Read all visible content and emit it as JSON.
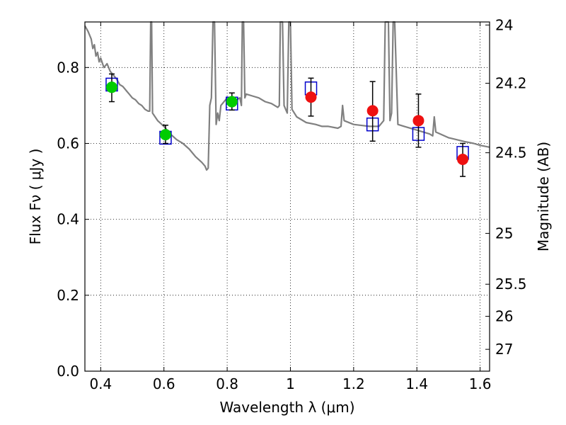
{
  "chart_data": {
    "type": "scatter",
    "xlabel": "Wavelength  λ (μm)",
    "ylabel": "Flux  Fν  ( μJy )",
    "y2label": "Magnitude (AB)",
    "xlim": [
      0.35,
      1.63
    ],
    "ylim": [
      0.0,
      0.92
    ],
    "x_ticks": [
      {
        "v": 0.4,
        "label": "0.4"
      },
      {
        "v": 0.6,
        "label": "0.6"
      },
      {
        "v": 0.8,
        "label": "0.8"
      },
      {
        "v": 1.0,
        "label": "1"
      },
      {
        "v": 1.2,
        "label": "1.2"
      },
      {
        "v": 1.4,
        "label": "1.4"
      },
      {
        "v": 1.6,
        "label": "1.6"
      }
    ],
    "y_ticks": [
      {
        "v": 0.0,
        "label": "0.0"
      },
      {
        "v": 0.2,
        "label": "0.2"
      },
      {
        "v": 0.4,
        "label": "0.4"
      },
      {
        "v": 0.6,
        "label": "0.6"
      },
      {
        "v": 0.8,
        "label": "0.8"
      }
    ],
    "y2_ticks": [
      {
        "mag": 24,
        "label": "24"
      },
      {
        "mag": 24.2,
        "label": "24.2"
      },
      {
        "mag": 24.5,
        "label": "24.5"
      },
      {
        "mag": 25,
        "label": "25"
      },
      {
        "mag": 25.5,
        "label": "25.5"
      },
      {
        "mag": 26,
        "label": "26"
      },
      {
        "mag": 27,
        "label": "27"
      }
    ],
    "grid": true,
    "colors": {
      "model": "#808080",
      "box": "#0000cc",
      "green": "#00cc00",
      "red": "#ee1111",
      "err": "#000000"
    },
    "model_spectrum": [
      [
        0.35,
        0.91
      ],
      [
        0.36,
        0.895
      ],
      [
        0.37,
        0.875
      ],
      [
        0.375,
        0.85
      ],
      [
        0.38,
        0.86
      ],
      [
        0.385,
        0.83
      ],
      [
        0.39,
        0.84
      ],
      [
        0.395,
        0.815
      ],
      [
        0.4,
        0.825
      ],
      [
        0.41,
        0.8
      ],
      [
        0.42,
        0.81
      ],
      [
        0.43,
        0.79
      ],
      [
        0.44,
        0.78
      ],
      [
        0.45,
        0.77
      ],
      [
        0.46,
        0.755
      ],
      [
        0.47,
        0.75
      ],
      [
        0.48,
        0.74
      ],
      [
        0.49,
        0.73
      ],
      [
        0.5,
        0.72
      ],
      [
        0.51,
        0.715
      ],
      [
        0.52,
        0.705
      ],
      [
        0.53,
        0.7
      ],
      [
        0.54,
        0.69
      ],
      [
        0.55,
        0.685
      ],
      [
        0.555,
        0.685
      ],
      [
        0.558,
        0.92
      ],
      [
        0.561,
        0.92
      ],
      [
        0.564,
        0.68
      ],
      [
        0.58,
        0.66
      ],
      [
        0.6,
        0.645
      ],
      [
        0.62,
        0.625
      ],
      [
        0.64,
        0.61
      ],
      [
        0.66,
        0.6
      ],
      [
        0.68,
        0.585
      ],
      [
        0.7,
        0.565
      ],
      [
        0.72,
        0.55
      ],
      [
        0.73,
        0.54
      ],
      [
        0.735,
        0.53
      ],
      [
        0.74,
        0.535
      ],
      [
        0.745,
        0.7
      ],
      [
        0.75,
        0.72
      ],
      [
        0.755,
        0.92
      ],
      [
        0.76,
        0.92
      ],
      [
        0.765,
        0.65
      ],
      [
        0.77,
        0.68
      ],
      [
        0.775,
        0.66
      ],
      [
        0.78,
        0.7
      ],
      [
        0.8,
        0.72
      ],
      [
        0.82,
        0.71
      ],
      [
        0.84,
        0.72
      ],
      [
        0.845,
        0.7
      ],
      [
        0.848,
        0.92
      ],
      [
        0.852,
        0.92
      ],
      [
        0.856,
        0.72
      ],
      [
        0.86,
        0.73
      ],
      [
        0.88,
        0.725
      ],
      [
        0.9,
        0.72
      ],
      [
        0.92,
        0.71
      ],
      [
        0.94,
        0.705
      ],
      [
        0.96,
        0.695
      ],
      [
        0.965,
        0.7
      ],
      [
        0.968,
        0.92
      ],
      [
        0.975,
        0.92
      ],
      [
        0.98,
        0.7
      ],
      [
        0.99,
        0.68
      ],
      [
        0.995,
        0.92
      ],
      [
        1.0,
        0.92
      ],
      [
        1.005,
        0.69
      ],
      [
        1.02,
        0.67
      ],
      [
        1.05,
        0.655
      ],
      [
        1.08,
        0.65
      ],
      [
        1.1,
        0.645
      ],
      [
        1.12,
        0.645
      ],
      [
        1.15,
        0.64
      ],
      [
        1.16,
        0.645
      ],
      [
        1.165,
        0.7
      ],
      [
        1.17,
        0.66
      ],
      [
        1.2,
        0.65
      ],
      [
        1.25,
        0.645
      ],
      [
        1.28,
        0.645
      ],
      [
        1.295,
        0.66
      ],
      [
        1.3,
        0.92
      ],
      [
        1.31,
        0.92
      ],
      [
        1.315,
        0.66
      ],
      [
        1.32,
        0.68
      ],
      [
        1.325,
        0.92
      ],
      [
        1.33,
        0.92
      ],
      [
        1.34,
        0.65
      ],
      [
        1.36,
        0.645
      ],
      [
        1.4,
        0.635
      ],
      [
        1.44,
        0.625
      ],
      [
        1.45,
        0.62
      ],
      [
        1.455,
        0.67
      ],
      [
        1.46,
        0.63
      ],
      [
        1.5,
        0.615
      ],
      [
        1.55,
        0.605
      ],
      [
        1.58,
        0.6
      ],
      [
        1.6,
        0.595
      ],
      [
        1.63,
        0.59
      ]
    ],
    "model_boxes": [
      {
        "x": 0.435,
        "y": 0.755
      },
      {
        "x": 0.605,
        "y": 0.615
      },
      {
        "x": 0.815,
        "y": 0.705
      },
      {
        "x": 1.065,
        "y": 0.745
      },
      {
        "x": 1.26,
        "y": 0.65
      },
      {
        "x": 1.405,
        "y": 0.625
      },
      {
        "x": 1.545,
        "y": 0.575
      }
    ],
    "observations": [
      {
        "x": 0.435,
        "y": 0.748,
        "err_lo": 0.71,
        "err_hi": 0.783,
        "color": "green"
      },
      {
        "x": 0.605,
        "y": 0.623,
        "err_lo": 0.6,
        "err_hi": 0.648,
        "color": "green"
      },
      {
        "x": 0.815,
        "y": 0.71,
        "err_lo": 0.688,
        "err_hi": 0.733,
        "color": "green"
      },
      {
        "x": 1.065,
        "y": 0.722,
        "err_lo": 0.672,
        "err_hi": 0.772,
        "color": "red"
      },
      {
        "x": 1.26,
        "y": 0.686,
        "err_lo": 0.606,
        "err_hi": 0.763,
        "color": "red"
      },
      {
        "x": 1.405,
        "y": 0.66,
        "err_lo": 0.59,
        "err_hi": 0.73,
        "color": "red"
      },
      {
        "x": 1.545,
        "y": 0.558,
        "err_lo": 0.513,
        "err_hi": 0.6,
        "color": "red"
      }
    ]
  }
}
